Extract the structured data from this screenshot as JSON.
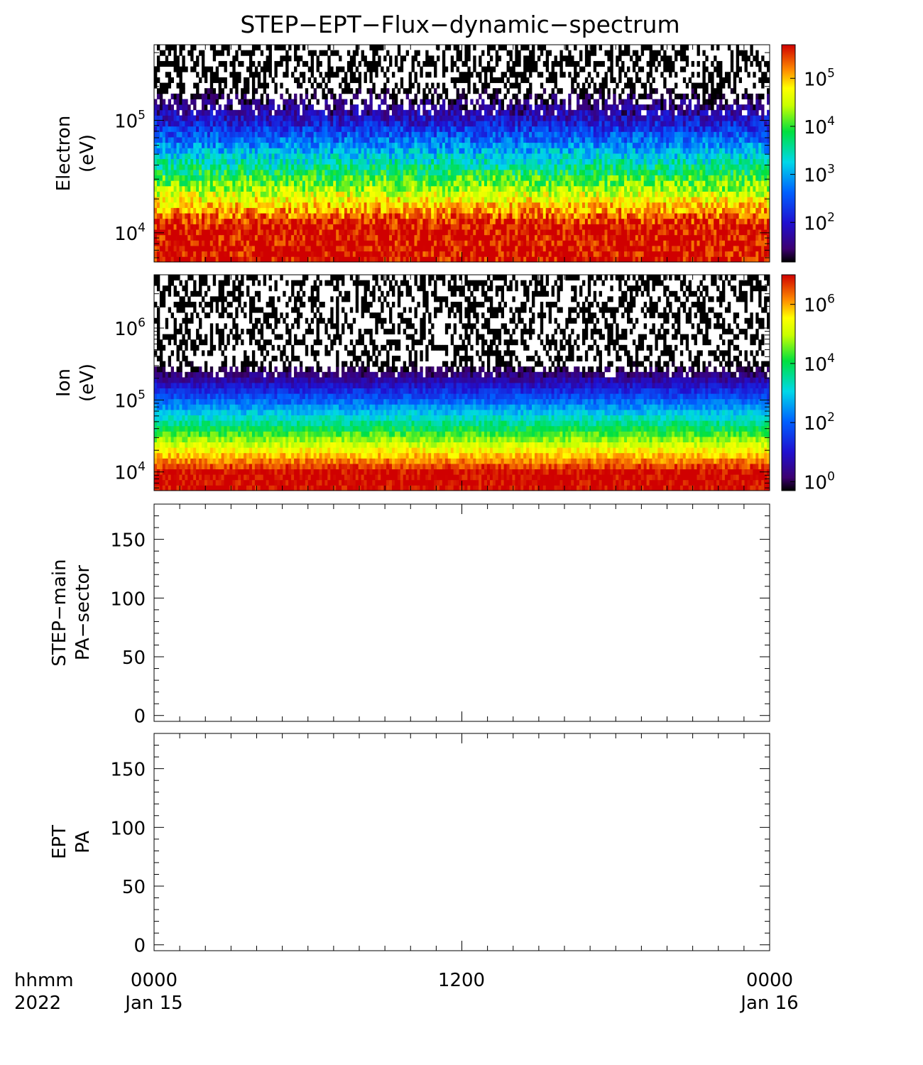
{
  "title": "STEP−EPT−Flux−dynamic−spectrum",
  "time_axis": {
    "caption_line1": "hhmm",
    "caption_line2": "2022",
    "ticks": [
      {
        "hours": 0,
        "line1": "0000",
        "line2": "Jan 15"
      },
      {
        "hours": 12,
        "line1": "1200",
        "line2": ""
      },
      {
        "hours": 24,
        "line1": "0000",
        "line2": "Jan 16"
      }
    ],
    "range_hours": [
      0,
      24
    ],
    "minor_tick_hours": 1
  },
  "chart_data": [
    {
      "type": "heatmap",
      "ylabel_line1": "Electron",
      "ylabel_line2": "(eV)",
      "yscale": "log",
      "ylim": [
        5500,
        470000
      ],
      "y_tick_labels": [
        {
          "base": "10",
          "exp": "4",
          "value": 10000
        },
        {
          "base": "10",
          "exp": "5",
          "value": 100000
        }
      ],
      "colorbar": {
        "scale": "log",
        "range": [
          15,
          500000
        ],
        "tick_labels": [
          {
            "base": "10",
            "exp": "2",
            "value": 100
          },
          {
            "base": "10",
            "exp": "3",
            "value": 1000
          },
          {
            "base": "10",
            "exp": "4",
            "value": 10000
          },
          {
            "base": "10",
            "exp": "5",
            "value": 100000
          }
        ]
      },
      "profile": {
        "peak_log_flux": 5.7,
        "knee_log_energy": 4.05,
        "slope": -3.9,
        "scatter": 0.45
      }
    },
    {
      "type": "heatmap",
      "ylabel_line1": "Ion",
      "ylabel_line2": "(eV)",
      "yscale": "log",
      "ylim": [
        5500,
        5500000
      ],
      "y_tick_labels": [
        {
          "base": "10",
          "exp": "4",
          "value": 10000
        },
        {
          "base": "10",
          "exp": "5",
          "value": 100000
        },
        {
          "base": "10",
          "exp": "6",
          "value": 1000000
        }
      ],
      "colorbar": {
        "scale": "log",
        "range": [
          0.5,
          10000000
        ],
        "tick_labels": [
          {
            "base": "10",
            "exp": "0",
            "value": 1
          },
          {
            "base": "10",
            "exp": "2",
            "value": 100
          },
          {
            "base": "10",
            "exp": "4",
            "value": 10000
          },
          {
            "base": "10",
            "exp": "6",
            "value": 1000000
          }
        ]
      },
      "profile": {
        "peak_log_flux": 7.0,
        "knee_log_energy": 4.0,
        "slope": -5.0,
        "scatter": 0.4
      }
    },
    {
      "type": "heatmap",
      "ylabel_line1": "STEP−main",
      "ylabel_line2": "PA−sector",
      "yscale": "linear",
      "ylim": [
        -5,
        180
      ],
      "y_ticks": [
        0,
        50,
        100,
        150
      ],
      "y_minor_step": 10,
      "values": []
    },
    {
      "type": "heatmap",
      "ylabel_line1": "EPT",
      "ylabel_line2": "PA",
      "yscale": "linear",
      "ylim": [
        -5,
        180
      ],
      "y_ticks": [
        0,
        50,
        100,
        150
      ],
      "y_minor_step": 10,
      "values": []
    }
  ]
}
